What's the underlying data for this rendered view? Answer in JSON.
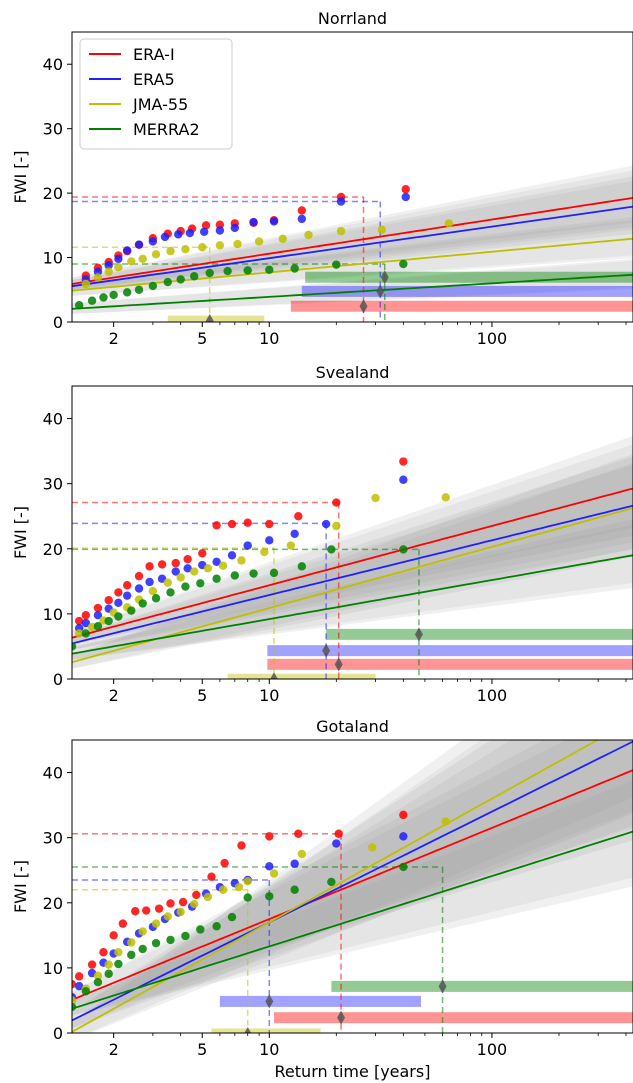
{
  "chart_data": {
    "type": "scatter",
    "shared": {
      "xlabel": "Return time [years]",
      "ylabel": "FWI [-]",
      "x_scale": "log",
      "xlim": [
        1.3,
        430
      ],
      "ylim": [
        0,
        45
      ],
      "x_ticks": [
        2,
        5,
        10,
        100
      ],
      "y_ticks": [
        0,
        10,
        20,
        30,
        40
      ],
      "legend_location": "top-left",
      "legend_panel": "Norrland",
      "grid": false
    },
    "series_meta": [
      {
        "name": "ERA-I",
        "color": "#ff0000",
        "light": "#ff9a9a"
      },
      {
        "name": "ERA5",
        "color": "#1f1fff",
        "light": "#9c9cff"
      },
      {
        "name": "JMA-55",
        "color": "#bfbf00",
        "light": "#dada8c"
      },
      {
        "name": "MERRA2",
        "color": "#008000",
        "light": "#99cc99"
      }
    ],
    "panels": [
      {
        "title": "Norrland",
        "fits": [
          {
            "series": "ERA-I",
            "a": 5.3,
            "b": 5.3
          },
          {
            "series": "ERA5",
            "a": 5.0,
            "b": 4.9
          },
          {
            "series": "JMA-55",
            "a": 4.5,
            "b": 3.2
          },
          {
            "series": "MERRA2",
            "a": 1.8,
            "b": 2.1
          }
        ],
        "points": [
          {
            "series": "ERA-I",
            "x": [
              1.5,
              1.7,
              1.9,
              2.1,
              2.3,
              2.6,
              3.0,
              3.5,
              4.0,
              4.5,
              5.2,
              6.0,
              7.0,
              8.5,
              10.5,
              14.0,
              21.0,
              41.0
            ],
            "y": [
              7.2,
              8.4,
              9.3,
              10.3,
              11.0,
              12.0,
              13.0,
              13.7,
              14.1,
              14.5,
              15.0,
              15.1,
              15.3,
              15.4,
              15.8,
              17.3,
              19.4,
              20.6
            ]
          },
          {
            "series": "ERA5",
            "x": [
              1.5,
              1.7,
              1.9,
              2.1,
              2.3,
              2.6,
              3.0,
              3.4,
              3.9,
              4.4,
              5.1,
              6.0,
              7.0,
              8.5,
              10.5,
              14.0,
              21.0,
              41.0
            ],
            "y": [
              6.6,
              7.8,
              8.8,
              9.8,
              11.1,
              12.0,
              12.5,
              13.2,
              13.6,
              13.8,
              14.0,
              14.2,
              14.6,
              15.5,
              15.6,
              16.0,
              18.7,
              19.4
            ]
          },
          {
            "series": "JMA-55",
            "x": [
              1.5,
              1.7,
              1.9,
              2.1,
              2.4,
              2.7,
              3.1,
              3.6,
              4.2,
              5.0,
              6.0,
              7.2,
              9.0,
              11.5,
              15.0,
              21.0,
              32.0,
              64.0
            ],
            "y": [
              5.9,
              6.9,
              7.8,
              8.5,
              9.4,
              9.8,
              10.5,
              11.0,
              11.3,
              11.6,
              11.9,
              12.1,
              12.5,
              12.9,
              13.5,
              14.1,
              14.3,
              15.3
            ]
          },
          {
            "series": "MERRA2",
            "x": [
              1.4,
              1.6,
              1.8,
              2.0,
              2.3,
              2.6,
              3.0,
              3.5,
              4.0,
              4.6,
              5.4,
              6.5,
              8.0,
              10.0,
              13.0,
              20.0,
              40.0
            ],
            "y": [
              2.6,
              3.3,
              3.8,
              4.2,
              4.6,
              5.0,
              5.6,
              6.2,
              6.6,
              7.1,
              7.6,
              7.9,
              8.0,
              8.1,
              8.3,
              8.9,
              9.0
            ]
          }
        ],
        "reference_lines": [
          {
            "series": "ERA-I",
            "y": 19.4,
            "x": 26.5
          },
          {
            "series": "ERA5",
            "y": 18.7,
            "x": 31.5
          },
          {
            "series": "JMA-55",
            "y": 11.6,
            "x": 5.4
          },
          {
            "series": "MERRA2",
            "y": 9.0,
            "x": 33.0
          }
        ],
        "intervals": [
          {
            "series": "MERRA2",
            "x_low": 14.5,
            "x_high": 430,
            "x_marker": 33.0
          },
          {
            "series": "ERA5",
            "x_low": 14.0,
            "x_high": 430,
            "x_marker": 31.5
          },
          {
            "series": "ERA-I",
            "x_low": 12.5,
            "x_high": 430,
            "x_marker": 26.5
          },
          {
            "series": "JMA-55",
            "x_low": 3.5,
            "x_high": 9.5,
            "x_marker": 5.4
          }
        ]
      },
      {
        "title": "Svealand",
        "fits": [
          {
            "series": "ERA-I",
            "a": 5.3,
            "b": 9.1
          },
          {
            "series": "ERA5",
            "a": 4.5,
            "b": 8.4
          },
          {
            "series": "JMA-55",
            "a": 1.5,
            "b": 9.4
          },
          {
            "series": "MERRA2",
            "a": 3.2,
            "b": 6.0
          }
        ],
        "points": [
          {
            "series": "ERA-I",
            "x": [
              1.4,
              1.5,
              1.7,
              1.9,
              2.1,
              2.3,
              2.6,
              2.9,
              3.3,
              3.8,
              4.3,
              5.0,
              5.8,
              6.8,
              8.0,
              10.0,
              13.5,
              20.0,
              40.0
            ],
            "y": [
              8.9,
              9.8,
              10.9,
              12.1,
              13.3,
              14.4,
              15.8,
              17.3,
              17.6,
              17.8,
              18.4,
              19.3,
              23.6,
              23.8,
              24.0,
              23.8,
              25.0,
              27.1,
              33.4
            ]
          },
          {
            "series": "ERA5",
            "x": [
              1.4,
              1.5,
              1.7,
              1.9,
              2.1,
              2.3,
              2.6,
              2.9,
              3.3,
              3.8,
              4.3,
              5.0,
              5.8,
              6.8,
              8.0,
              10.0,
              13.0,
              18.0,
              40.0
            ],
            "y": [
              7.8,
              8.6,
              9.8,
              10.8,
              11.7,
              12.8,
              13.9,
              14.9,
              15.4,
              16.5,
              17.0,
              17.5,
              18.0,
              19.0,
              20.5,
              21.3,
              22.3,
              23.8,
              30.6
            ]
          },
          {
            "series": "JMA-55",
            "x": [
              1.4,
              1.6,
              1.8,
              2.0,
              2.3,
              2.6,
              3.0,
              3.5,
              4.0,
              4.6,
              5.3,
              6.2,
              7.5,
              9.5,
              12.5,
              20.0,
              30.0,
              62.0
            ],
            "y": [
              7.0,
              8.0,
              9.0,
              10.2,
              11.0,
              12.2,
              13.5,
              14.8,
              15.6,
              16.5,
              17.0,
              17.4,
              18.2,
              19.5,
              20.5,
              23.5,
              27.8,
              27.9
            ]
          },
          {
            "series": "MERRA2",
            "x": [
              1.3,
              1.5,
              1.7,
              1.9,
              2.1,
              2.4,
              2.7,
              3.1,
              3.6,
              4.2,
              4.9,
              5.8,
              7.0,
              8.5,
              10.5,
              14.0,
              19.0,
              40.0
            ],
            "y": [
              5.0,
              7.0,
              8.1,
              8.9,
              9.6,
              10.5,
              11.6,
              12.4,
              13.3,
              14.2,
              14.7,
              15.4,
              15.9,
              16.2,
              16.3,
              17.3,
              19.9,
              19.9
            ]
          }
        ],
        "reference_lines": [
          {
            "series": "ERA-I",
            "y": 27.1,
            "x": 20.5
          },
          {
            "series": "ERA5",
            "y": 23.9,
            "x": 18.0
          },
          {
            "series": "JMA-55",
            "y": 20.1,
            "x": 10.5
          },
          {
            "series": "MERRA2",
            "y": 19.9,
            "x": 47.0
          }
        ],
        "intervals": [
          {
            "series": "MERRA2",
            "x_low": 18.0,
            "x_high": 430,
            "x_marker": 47.0
          },
          {
            "series": "ERA5",
            "x_low": 9.8,
            "x_high": 430,
            "x_marker": 18.0
          },
          {
            "series": "ERA-I",
            "x_low": 9.8,
            "x_high": 430,
            "x_marker": 20.5
          },
          {
            "series": "JMA-55",
            "x_low": 6.5,
            "x_high": 30.0,
            "x_marker": 10.5
          }
        ]
      },
      {
        "title": "Gotaland",
        "fits": [
          {
            "series": "ERA-I",
            "a": 3.5,
            "b": 14.0
          },
          {
            "series": "ERA5",
            "a": 0.0,
            "b": 17.0
          },
          {
            "series": "JMA-55",
            "a": -2.0,
            "b": 19.0
          },
          {
            "series": "MERRA2",
            "a": 2.5,
            "b": 10.8
          }
        ],
        "points": [
          {
            "series": "ERA-I",
            "x": [
              1.3,
              1.4,
              1.6,
              1.8,
              2.0,
              2.2,
              2.5,
              2.8,
              3.2,
              3.6,
              4.1,
              4.7,
              5.5,
              6.3,
              7.5,
              10.0,
              13.5,
              20.5,
              40.0
            ],
            "y": [
              7.5,
              8.7,
              10.5,
              12.4,
              15.0,
              16.8,
              18.7,
              18.8,
              19.1,
              19.9,
              20.1,
              21.2,
              24.0,
              26.1,
              28.8,
              30.2,
              30.6,
              30.6,
              33.5
            ]
          },
          {
            "series": "ERA5",
            "x": [
              1.3,
              1.4,
              1.6,
              1.8,
              2.0,
              2.3,
              2.6,
              3.0,
              3.4,
              3.9,
              4.5,
              5.2,
              6.0,
              7.0,
              8.0,
              10.0,
              13.0,
              20.0,
              40.0
            ],
            "y": [
              5.5,
              7.2,
              9.2,
              10.8,
              12.2,
              14.0,
              15.3,
              16.3,
              17.5,
              18.5,
              19.4,
              21.4,
              22.4,
              23.0,
              23.5,
              25.6,
              26.0,
              29.1,
              30.2
            ]
          },
          {
            "series": "JMA-55",
            "x": [
              1.3,
              1.5,
              1.7,
              1.9,
              2.1,
              2.4,
              2.7,
              3.1,
              3.5,
              4.0,
              4.6,
              5.3,
              6.2,
              7.3,
              8.0,
              10.5,
              14.0,
              29.0,
              62.0
            ],
            "y": [
              5.0,
              6.8,
              8.8,
              10.5,
              12.4,
              13.9,
              15.6,
              16.8,
              17.9,
              18.6,
              19.8,
              20.9,
              22.0,
              22.4,
              23.3,
              24.5,
              27.5,
              28.5,
              32.5
            ]
          },
          {
            "series": "MERRA2",
            "x": [
              1.3,
              1.5,
              1.7,
              1.9,
              2.1,
              2.4,
              2.7,
              3.1,
              3.6,
              4.2,
              4.9,
              5.8,
              6.8,
              8.0,
              10.0,
              13.0,
              19.0,
              40.0
            ],
            "y": [
              4.0,
              6.4,
              7.8,
              9.1,
              10.6,
              12.0,
              12.9,
              13.8,
              14.3,
              14.9,
              15.9,
              16.4,
              17.8,
              20.8,
              21.0,
              22.0,
              23.2,
              25.5
            ]
          }
        ],
        "reference_lines": [
          {
            "series": "ERA-I",
            "y": 30.6,
            "x": 21.0
          },
          {
            "series": "ERA5",
            "y": 23.5,
            "x": 10.0
          },
          {
            "series": "JMA-55",
            "y": 22.0,
            "x": 8.0
          },
          {
            "series": "MERRA2",
            "y": 25.5,
            "x": 60.0
          }
        ],
        "intervals": [
          {
            "series": "MERRA2",
            "x_low": 19.0,
            "x_high": 430,
            "x_marker": 60.0
          },
          {
            "series": "ERA5",
            "x_low": 6.0,
            "x_high": 48.0,
            "x_marker": 10.0
          },
          {
            "series": "ERA-I",
            "x_low": 10.5,
            "x_high": 430,
            "x_marker": 21.0
          },
          {
            "series": "JMA-55",
            "x_low": 5.5,
            "x_high": 17.0,
            "x_marker": 8.0
          }
        ]
      }
    ]
  }
}
